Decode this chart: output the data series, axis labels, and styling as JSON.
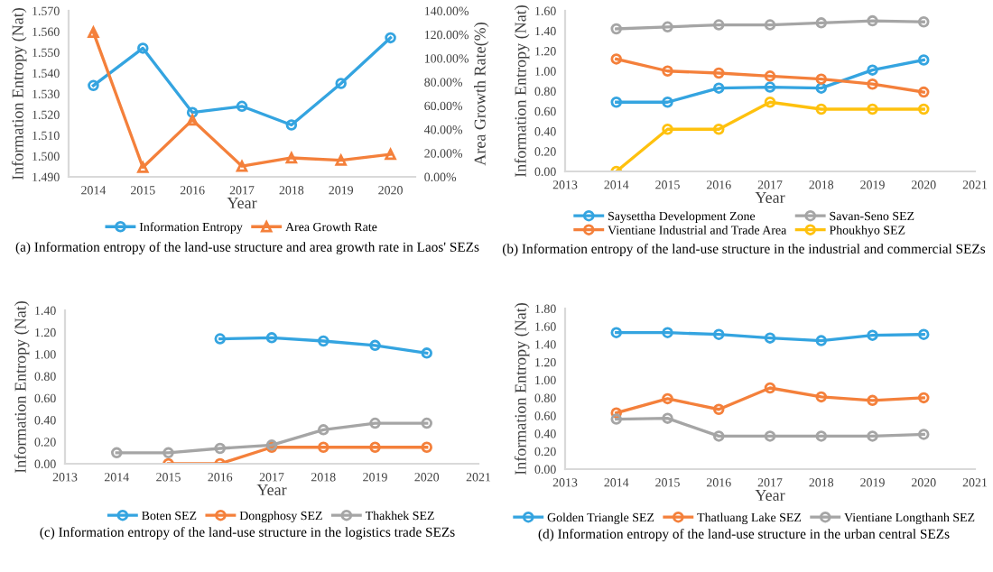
{
  "chart_data": [
    {
      "type": "line",
      "categories": [
        "2014",
        "2015",
        "2016",
        "2017",
        "2018",
        "2019",
        "2020"
      ],
      "xlabel": "Year",
      "ylabel": "Information Entropy (Nat)",
      "y2label": "Area Growth Rate(%)",
      "series": [
        {
          "name": "Information Entropy",
          "color": "#34a4e0",
          "marker": "circle",
          "values": [
            1.534,
            1.552,
            1.521,
            1.524,
            1.515,
            1.535,
            1.557
          ]
        },
        {
          "name": "Area Growth Rate",
          "color": "#f4803b",
          "marker": "triangle",
          "axis": "y2",
          "values": [
            122,
            8,
            48,
            9,
            16,
            14,
            19
          ]
        }
      ],
      "ylim": [
        1.49,
        1.57
      ],
      "yticks": [
        {
          "value": 1.49,
          "label": "1.490"
        },
        {
          "value": 1.5,
          "label": "1.500"
        },
        {
          "value": 1.51,
          "label": "1.510"
        },
        {
          "value": 1.52,
          "label": "1.520"
        },
        {
          "value": 1.53,
          "label": "1.530"
        },
        {
          "value": 1.54,
          "label": "1.540"
        },
        {
          "value": 1.55,
          "label": "1.550"
        },
        {
          "value": 1.56,
          "label": "1.560"
        },
        {
          "value": 1.57,
          "label": "1.570"
        }
      ],
      "y2lim": [
        0,
        140
      ],
      "y2ticks": [
        {
          "value": 0,
          "label": "0.00%"
        },
        {
          "value": 20,
          "label": "20.00%"
        },
        {
          "value": 40,
          "label": "40.00%"
        },
        {
          "value": 60,
          "label": "60.00%"
        },
        {
          "value": 80,
          "label": "80.00%"
        },
        {
          "value": 100,
          "label": "100.00%"
        },
        {
          "value": 120,
          "label": "120.00%"
        },
        {
          "value": 140,
          "label": "140.00%"
        }
      ],
      "grid": false,
      "legend": "bottom",
      "annotations": [
        "(a) Information entropy of the land-use structure and area growth rate in Laos' SEZs"
      ]
    },
    {
      "type": "line",
      "x": [
        2014,
        2015,
        2016,
        2017,
        2018,
        2019,
        2020
      ],
      "xlabel": "Year",
      "ylabel": "Information Entropy (Nat)",
      "marker": "circle",
      "series": [
        {
          "name": "Saysettha Development Zone",
          "color": "#34a4e0",
          "values": [
            0.69,
            0.69,
            0.83,
            0.84,
            0.83,
            1.01,
            1.11
          ]
        },
        {
          "name": "Vientiane Industrial and Trade Area",
          "color": "#f4803b",
          "values": [
            1.12,
            1.0,
            0.98,
            0.95,
            0.92,
            0.87,
            0.79
          ]
        },
        {
          "name": "Savan-Seno SEZ",
          "color": "#a5a5a5",
          "values": [
            1.42,
            1.44,
            1.46,
            1.46,
            1.48,
            1.5,
            1.49
          ]
        },
        {
          "name": "Phoukhyo SEZ",
          "color": "#fec10e",
          "values": [
            0.0,
            0.42,
            0.42,
            0.69,
            0.62,
            0.62,
            0.62
          ]
        }
      ],
      "xlim": [
        2013,
        2021
      ],
      "xticks": [
        2013,
        2014,
        2015,
        2016,
        2017,
        2018,
        2019,
        2020,
        2021
      ],
      "ylim": [
        0,
        1.6
      ],
      "yticks": [
        {
          "value": 0,
          "label": "0.00"
        },
        {
          "value": 0.2,
          "label": "0.20"
        },
        {
          "value": 0.4,
          "label": "0.40"
        },
        {
          "value": 0.6,
          "label": "0.60"
        },
        {
          "value": 0.8,
          "label": "0.80"
        },
        {
          "value": 1.0,
          "label": "1.00"
        },
        {
          "value": 1.2,
          "label": "1.20"
        },
        {
          "value": 1.4,
          "label": "1.40"
        },
        {
          "value": 1.6,
          "label": "1.60"
        }
      ],
      "grid": false,
      "legend": "bottom",
      "annotations": [
        "(b) Information entropy of the land-use structure in the industrial and commercial SEZs"
      ]
    },
    {
      "type": "line",
      "xlabel": "Year",
      "ylabel": "Information Entropy (Nat)",
      "marker": "circle",
      "series": [
        {
          "name": "Boten SEZ",
          "color": "#34a4e0",
          "x": [
            2016,
            2017,
            2018,
            2019,
            2020
          ],
          "values": [
            1.14,
            1.15,
            1.12,
            1.08,
            1.01
          ]
        },
        {
          "name": "Dongphosy SEZ",
          "color": "#f4803b",
          "x": [
            2015,
            2016,
            2017,
            2018,
            2019,
            2020
          ],
          "values": [
            0.0,
            0.0,
            0.15,
            0.15,
            0.15,
            0.15
          ]
        },
        {
          "name": "Thakhek SEZ",
          "color": "#a5a5a5",
          "x": [
            2014,
            2015,
            2016,
            2017,
            2018,
            2019,
            2020
          ],
          "values": [
            0.1,
            0.1,
            0.14,
            0.17,
            0.31,
            0.37,
            0.37
          ]
        }
      ],
      "xlim": [
        2013,
        2021
      ],
      "xticks": [
        2013,
        2014,
        2015,
        2016,
        2017,
        2018,
        2019,
        2020,
        2021
      ],
      "ylim": [
        0,
        1.4
      ],
      "yticks": [
        {
          "value": 0,
          "label": "0.00"
        },
        {
          "value": 0.2,
          "label": "0.20"
        },
        {
          "value": 0.4,
          "label": "0.40"
        },
        {
          "value": 0.6,
          "label": "0.60"
        },
        {
          "value": 0.8,
          "label": "0.80"
        },
        {
          "value": 1.0,
          "label": "1.00"
        },
        {
          "value": 1.2,
          "label": "1.20"
        },
        {
          "value": 1.4,
          "label": "1.40"
        }
      ],
      "grid": false,
      "legend": "bottom",
      "annotations": [
        "(c) Information entropy of the land-use structure in the logistics trade SEZs"
      ]
    },
    {
      "type": "line",
      "x": [
        2014,
        2015,
        2016,
        2017,
        2018,
        2019,
        2020
      ],
      "xlabel": "Year",
      "ylabel": "Information Entropy (Nat)",
      "marker": "circle",
      "series": [
        {
          "name": "Golden Triangle SEZ",
          "color": "#34a4e0",
          "values": [
            1.53,
            1.53,
            1.51,
            1.47,
            1.44,
            1.5,
            1.51
          ]
        },
        {
          "name": "Thatluang Lake SEZ",
          "color": "#f4803b",
          "values": [
            0.63,
            0.79,
            0.67,
            0.91,
            0.81,
            0.77,
            0.8
          ]
        },
        {
          "name": "Vientiane Longthanh SEZ",
          "color": "#a5a5a5",
          "values": [
            0.56,
            0.57,
            0.37,
            0.37,
            0.37,
            0.37,
            0.39
          ]
        }
      ],
      "xlim": [
        2013,
        2021
      ],
      "xticks": [
        2013,
        2014,
        2015,
        2016,
        2017,
        2018,
        2019,
        2020,
        2021
      ],
      "ylim": [
        0,
        1.8
      ],
      "yticks": [
        {
          "value": 0,
          "label": "0.00"
        },
        {
          "value": 0.2,
          "label": "0.20"
        },
        {
          "value": 0.4,
          "label": "0.40"
        },
        {
          "value": 0.6,
          "label": "0.60"
        },
        {
          "value": 0.8,
          "label": "0.80"
        },
        {
          "value": 1.0,
          "label": "1.00"
        },
        {
          "value": 1.2,
          "label": "1.20"
        },
        {
          "value": 1.4,
          "label": "1.40"
        },
        {
          "value": 1.6,
          "label": "1.60"
        },
        {
          "value": 1.8,
          "label": "1.80"
        }
      ],
      "grid": false,
      "legend": "bottom",
      "annotations": [
        "(d) Information entropy of the land-use structure in the urban central SEZs"
      ]
    }
  ]
}
